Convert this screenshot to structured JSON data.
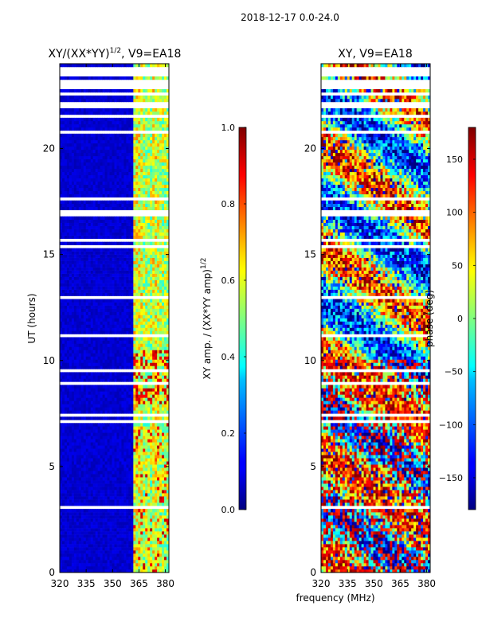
{
  "suptitle": "2018-12-17 0.0-24.0",
  "chart_data": [
    {
      "type": "heatmap",
      "title_main": "XY/(XX*YY)",
      "title_sup": "1/2",
      "title_tail": ", V9=EA18",
      "xlabel": "",
      "ylabel": "UT (hours)",
      "xlim": [
        320,
        382
      ],
      "ylim": [
        0,
        24
      ],
      "xticks": [
        320,
        335,
        350,
        365,
        380
      ],
      "yticks": [
        0,
        5,
        10,
        15,
        20
      ],
      "colorbar": {
        "label_main": "XY amp. / (XX*YY amp)",
        "label_sup": "1/2",
        "range": [
          0.0,
          1.0
        ],
        "ticks": [
          "0.0",
          "0.2",
          "0.4",
          "0.6",
          "0.8",
          "1.0"
        ],
        "colormap": "jet"
      }
    },
    {
      "type": "heatmap",
      "title_main": "XY, V9=EA18",
      "xlabel": "frequency (MHz)",
      "ylabel": "",
      "xlim": [
        320,
        382
      ],
      "ylim": [
        0,
        24
      ],
      "xticks": [
        320,
        335,
        350,
        365,
        380
      ],
      "yticks": [
        0,
        5,
        10,
        15,
        20
      ],
      "colorbar": {
        "label_main": "phase (deg)",
        "range": [
          -180,
          180
        ],
        "ticks": [
          "−150",
          "−100",
          "−50",
          "0",
          "50",
          "100",
          "150"
        ],
        "colormap": "jet"
      }
    }
  ]
}
